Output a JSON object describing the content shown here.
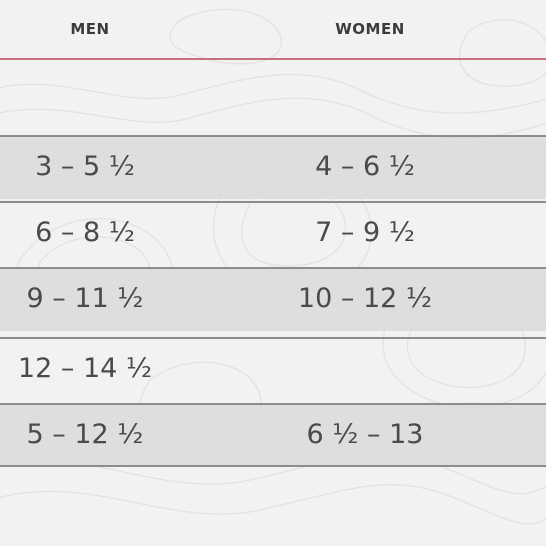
{
  "header": {
    "men_label": "MEN",
    "women_label": "WOMEN"
  },
  "accent_color": "#c9707f",
  "rows": [
    {
      "men": "3 – 5 ½",
      "women": "4 – 6 ½",
      "shaded": true
    },
    {
      "men": "6 – 8 ½",
      "women": "7 – 9 ½",
      "shaded": false
    },
    {
      "men": "9 – 11 ½",
      "women": "10 – 12 ½",
      "shaded": true
    },
    {
      "men": "12 – 14 ½",
      "women": "",
      "shaded": false
    },
    {
      "men": "5 – 12 ½",
      "women": "6 ½ – 13",
      "shaded": true
    }
  ]
}
